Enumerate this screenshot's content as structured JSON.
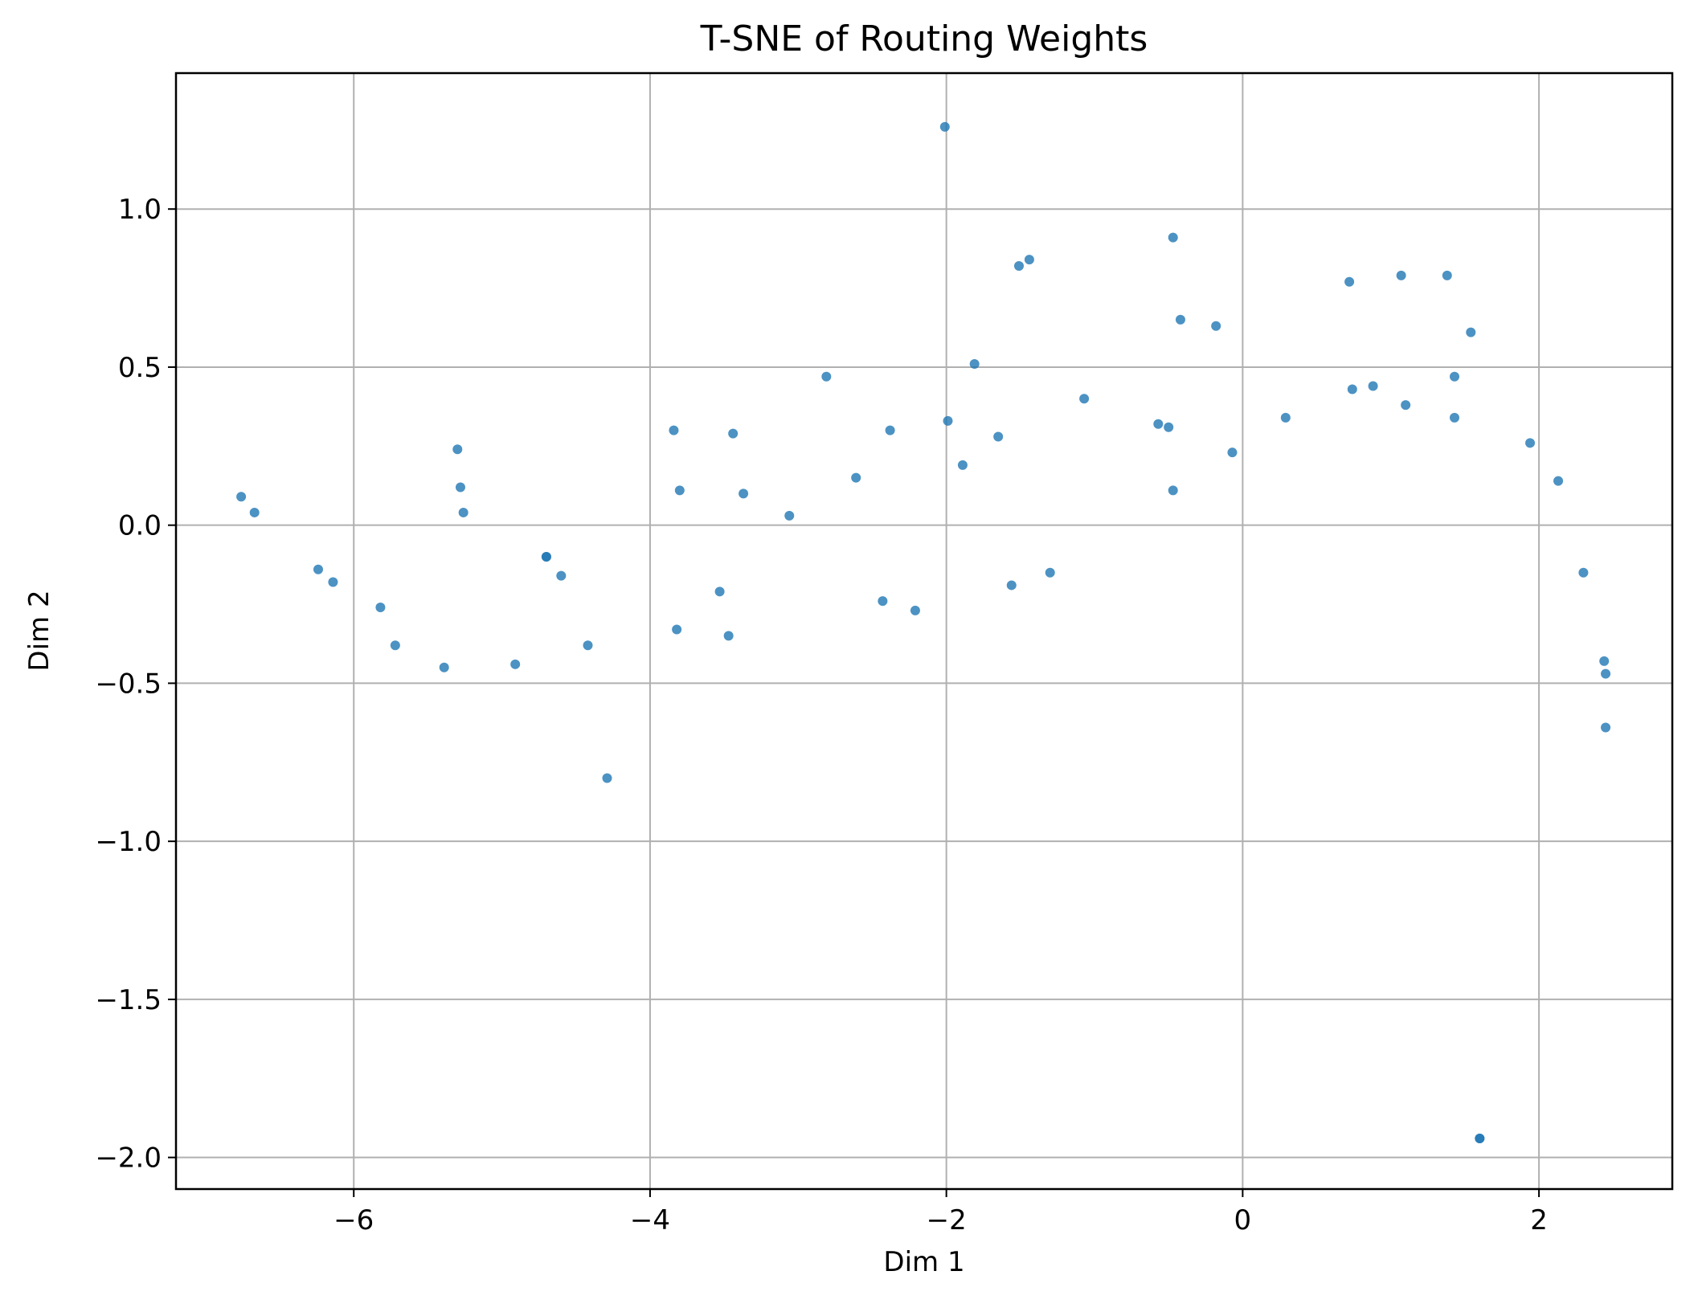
{
  "chart_data": {
    "type": "scatter",
    "title": "T-SNE of Routing Weights",
    "xlabel": "Dim 1",
    "ylabel": "Dim 2",
    "xlim": [
      -7.2,
      2.9
    ],
    "ylim": [
      -2.1,
      1.43
    ],
    "xticks": [
      -6,
      -4,
      -2,
      0,
      2
    ],
    "yticks": [
      -2.0,
      -1.5,
      -1.0,
      -0.5,
      0.0,
      0.5,
      1.0
    ],
    "xtick_labels": [
      "−6",
      "−4",
      "−2",
      "0",
      "2"
    ],
    "ytick_labels": [
      "−2.0",
      "−1.5",
      "−1.0",
      "−0.5",
      "0.0",
      "0.5",
      "1.0"
    ],
    "grid": true,
    "color": "#1f77b4",
    "points": [
      [
        -6.76,
        0.09
      ],
      [
        -6.67,
        0.04
      ],
      [
        -6.24,
        -0.14
      ],
      [
        -6.14,
        -0.18
      ],
      [
        -5.82,
        -0.26
      ],
      [
        -5.72,
        -0.38
      ],
      [
        -5.39,
        -0.45
      ],
      [
        -5.3,
        0.24
      ],
      [
        -5.28,
        0.12
      ],
      [
        -5.26,
        0.04
      ],
      [
        -4.91,
        -0.44
      ],
      [
        -4.7,
        -0.1
      ],
      [
        -4.7,
        -0.1
      ],
      [
        -4.6,
        -0.16
      ],
      [
        -4.42,
        -0.38
      ],
      [
        -4.29,
        -0.8
      ],
      [
        -3.84,
        0.3
      ],
      [
        -3.82,
        -0.33
      ],
      [
        -3.8,
        0.11
      ],
      [
        -3.53,
        -0.21
      ],
      [
        -3.47,
        -0.35
      ],
      [
        -3.44,
        0.29
      ],
      [
        -3.37,
        0.1
      ],
      [
        -3.06,
        0.03
      ],
      [
        -2.81,
        0.47
      ],
      [
        -2.61,
        0.15
      ],
      [
        -2.43,
        -0.24
      ],
      [
        -2.38,
        0.3
      ],
      [
        -2.21,
        -0.27
      ],
      [
        -2.01,
        1.26
      ],
      [
        -1.99,
        0.33
      ],
      [
        -1.89,
        0.19
      ],
      [
        -1.81,
        0.51
      ],
      [
        -1.65,
        0.28
      ],
      [
        -1.56,
        -0.19
      ],
      [
        -1.51,
        0.82
      ],
      [
        -1.44,
        0.84
      ],
      [
        -1.3,
        -0.15
      ],
      [
        -1.07,
        0.4
      ],
      [
        -0.57,
        0.32
      ],
      [
        -0.5,
        0.31
      ],
      [
        -0.47,
        0.91
      ],
      [
        -0.47,
        0.11
      ],
      [
        -0.42,
        0.65
      ],
      [
        -0.18,
        0.63
      ],
      [
        -0.07,
        0.23
      ],
      [
        0.29,
        0.34
      ],
      [
        0.72,
        0.77
      ],
      [
        0.74,
        0.43
      ],
      [
        0.88,
        0.44
      ],
      [
        1.07,
        0.79
      ],
      [
        1.1,
        0.38
      ],
      [
        1.38,
        0.79
      ],
      [
        1.43,
        0.47
      ],
      [
        1.43,
        0.34
      ],
      [
        1.54,
        0.61
      ],
      [
        1.6,
        -1.94
      ],
      [
        1.6,
        -1.94
      ],
      [
        1.94,
        0.26
      ],
      [
        2.13,
        0.14
      ],
      [
        2.3,
        -0.15
      ],
      [
        2.44,
        -0.43
      ],
      [
        2.45,
        -0.47
      ],
      [
        2.45,
        -0.64
      ]
    ]
  }
}
